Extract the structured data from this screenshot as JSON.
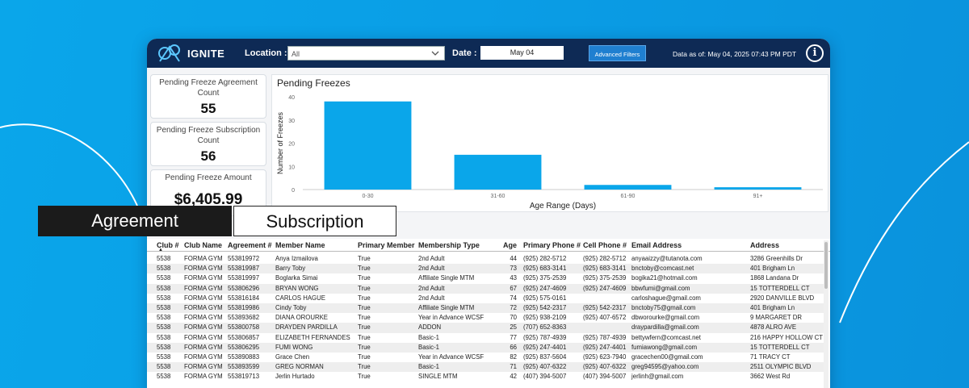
{
  "brand": {
    "name": "IGNITE"
  },
  "filters": {
    "location_label": "Location :",
    "location_value": "All",
    "date_label": "Date :",
    "date_value": "May 04",
    "advanced_label": "Advanced Filters",
    "data_as_of": "Data as of: May 04, 2025  07:43 PM PDT"
  },
  "kpis": [
    {
      "label": "Pending Freeze Agreement Count",
      "value": "55"
    },
    {
      "label": "Pending Freeze Subscription Count",
      "value": "56"
    },
    {
      "label": "Pending Freeze Amount",
      "value": "$6,405.99"
    }
  ],
  "tabs": {
    "agreement": "Agreement",
    "subscription": "Subscription"
  },
  "chart_data": {
    "type": "bar",
    "title": "Pending Freezes",
    "xlabel": "Age Range (Days)",
    "ylabel": "Number of Freezes",
    "categories": [
      "0-30",
      "31-60",
      "61-90",
      "91+"
    ],
    "values": [
      38,
      15,
      2,
      1
    ],
    "ylim": [
      0,
      40
    ],
    "yticks": [
      0,
      10,
      20,
      30,
      40
    ],
    "color": "#0aa6ea",
    "grid": false
  },
  "table": {
    "columns": [
      "Club #",
      "Club Name",
      "Agreement #",
      "Member Name",
      "Primary Member",
      "Membership Type",
      "Age",
      "Primary Phone #",
      "Cell Phone #",
      "Email Address",
      "Address"
    ],
    "rows": [
      [
        "5538",
        "FORMA GYM",
        "553819972",
        "Anya Izmailova",
        "True",
        "2nd Adult",
        "44",
        "(925) 282-5712",
        "(925) 282-5712",
        "anyaaizzy@tutanota.com",
        "3286 Greenhills Dr"
      ],
      [
        "5538",
        "FORMA GYM",
        "553819987",
        "Barry Toby",
        "True",
        "2nd Adult",
        "73",
        "(925) 683-3141",
        "(925) 683-3141",
        "bnctoby@comcast.net",
        "401 Brigham Ln"
      ],
      [
        "5538",
        "FORMA GYM",
        "553819997",
        "Boglarka Simai",
        "True",
        "Affiliate Single MTM",
        "43",
        "(925) 375-2539",
        "(925) 375-2539",
        "bogika21@hotmail.com",
        "1868 Landana Dr"
      ],
      [
        "5538",
        "FORMA GYM",
        "553806296",
        "BRYAN WONG",
        "True",
        "2nd Adult",
        "67",
        "(925) 247-4609",
        "(925) 247-4609",
        "bbwfumi@gmail.com",
        "15 TOTTERDELL CT"
      ],
      [
        "5538",
        "FORMA GYM",
        "553816184",
        "CARLOS HAGUE",
        "True",
        "2nd Adult",
        "74",
        "(925) 575-0161",
        "",
        "carloshague@gmail.com",
        "2920 DANVILLE BLVD"
      ],
      [
        "5538",
        "FORMA GYM",
        "553819986",
        "Cindy Toby",
        "True",
        "Affiliate Single MTM",
        "72",
        "(925) 542-2317",
        "(925) 542-2317",
        "bnctoby75@gmail.com",
        "401 Brigham Ln"
      ],
      [
        "5538",
        "FORMA GYM",
        "553893682",
        "DIANA OROURKE",
        "True",
        "Year in Advance WCSF",
        "70",
        "(925) 938-2109",
        "(925) 407-6572",
        "dbworourke@gmail.com",
        "9 MARGARET DR"
      ],
      [
        "5538",
        "FORMA GYM",
        "553800758",
        "DRAYDEN PARDILLA",
        "True",
        "ADDON",
        "25",
        "(707) 652-8363",
        "",
        "draypardilla@gmail.com",
        "4878 ALRO AVE"
      ],
      [
        "5538",
        "FORMA GYM",
        "553806857",
        "ELIZABETH FERNANDES",
        "True",
        "Basic-1",
        "77",
        "(925) 787-4939",
        "(925) 787-4939",
        "bettywfern@comcast.net",
        "216 HAPPY HOLLOW CT"
      ],
      [
        "5538",
        "FORMA GYM",
        "553806295",
        "FUMI WONG",
        "True",
        "Basic-1",
        "66",
        "(925) 247-4401",
        "(925) 247-4401",
        "fumiawong@gmail.com",
        "15 TOTTERDELL CT"
      ],
      [
        "5538",
        "FORMA GYM",
        "553890883",
        "Grace Chen",
        "True",
        "Year in Advance WCSF",
        "82",
        "(925) 837-5604",
        "(925) 623-7940",
        "gracechen00@gmail.com",
        "71 TRACY CT"
      ],
      [
        "5538",
        "FORMA GYM",
        "553893599",
        "GREG NORMAN",
        "True",
        "Basic-1",
        "71",
        "(925) 407-6322",
        "(925) 407-6322",
        "greg94595@yahoo.com",
        "2511 OLYMPIC BLVD"
      ],
      [
        "5538",
        "FORMA GYM",
        "553819713",
        "Jerlin Hurtado",
        "True",
        "SINGLE MTM",
        "42",
        "(407) 394-5007",
        "(407) 394-5007",
        "jerlinh@gmail.com",
        "3662 West Rd"
      ]
    ]
  }
}
